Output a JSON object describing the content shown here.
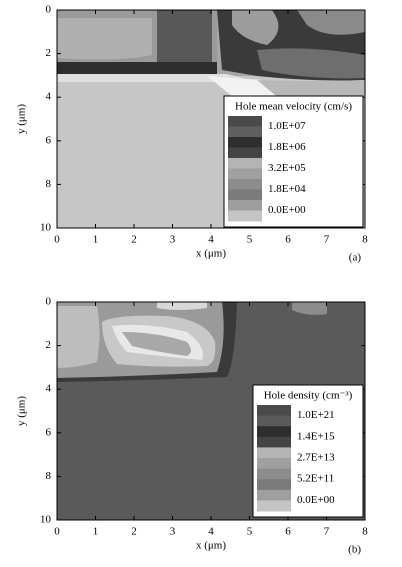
{
  "chart_data": [
    {
      "type": "contour",
      "panel_label": "(a)",
      "xlabel": "x (μm)",
      "ylabel": "y (μm)",
      "xlim": [
        0,
        8
      ],
      "xticks": [
        0,
        1,
        2,
        3,
        4,
        5,
        6,
        7,
        8
      ],
      "ylim": [
        10,
        0
      ],
      "yticks": [
        0,
        2,
        4,
        6,
        8,
        10
      ],
      "legend_title": "Hole mean velocity (cm/s)",
      "legend_levels": [
        {
          "value": 10000000,
          "label": "1.0E+07"
        },
        {
          "value": 1800000,
          "label": "1.8E+06"
        },
        {
          "value": 320000,
          "label": "3.2E+05"
        },
        {
          "value": 18000,
          "label": "1.8E+04"
        },
        {
          "value": 0,
          "label": "0.0E+00"
        }
      ],
      "legend_colors": [
        "#4a4a4a",
        "#5e5e5e",
        "#2e2e2e",
        "#444444",
        "#b4b4b4",
        "#a0a0a0",
        "#8c8c8c",
        "#7a7a7a",
        "#9e9e9e",
        "#c4c4c4"
      ]
    },
    {
      "type": "contour",
      "panel_label": "(b)",
      "xlabel": "x (μm)",
      "ylabel": "y (μm)",
      "xlim": [
        0,
        8
      ],
      "xticks": [
        0,
        1,
        2,
        3,
        4,
        5,
        6,
        7,
        8
      ],
      "ylim": [
        10,
        0
      ],
      "yticks": [
        0,
        2,
        4,
        6,
        8,
        10
      ],
      "legend_title": "Hole density (cm⁻³)",
      "legend_levels": [
        {
          "value": 1e+21,
          "label": "1.0E+21"
        },
        {
          "value": 1400000000000000.0,
          "label": "1.4E+15"
        },
        {
          "value": 27000000000000.0,
          "label": "2.7E+13"
        },
        {
          "value": 520000000000.0,
          "label": "5.2E+11"
        },
        {
          "value": 0,
          "label": "0.0E+00"
        }
      ],
      "legend_colors": [
        "#4a4a4a",
        "#5a5a5a",
        "#2e2e2e",
        "#444444",
        "#b4b4b4",
        "#a0a0a0",
        "#8c8c8c",
        "#7a7a7a",
        "#9e9e9e",
        "#c4c4c4"
      ]
    }
  ]
}
